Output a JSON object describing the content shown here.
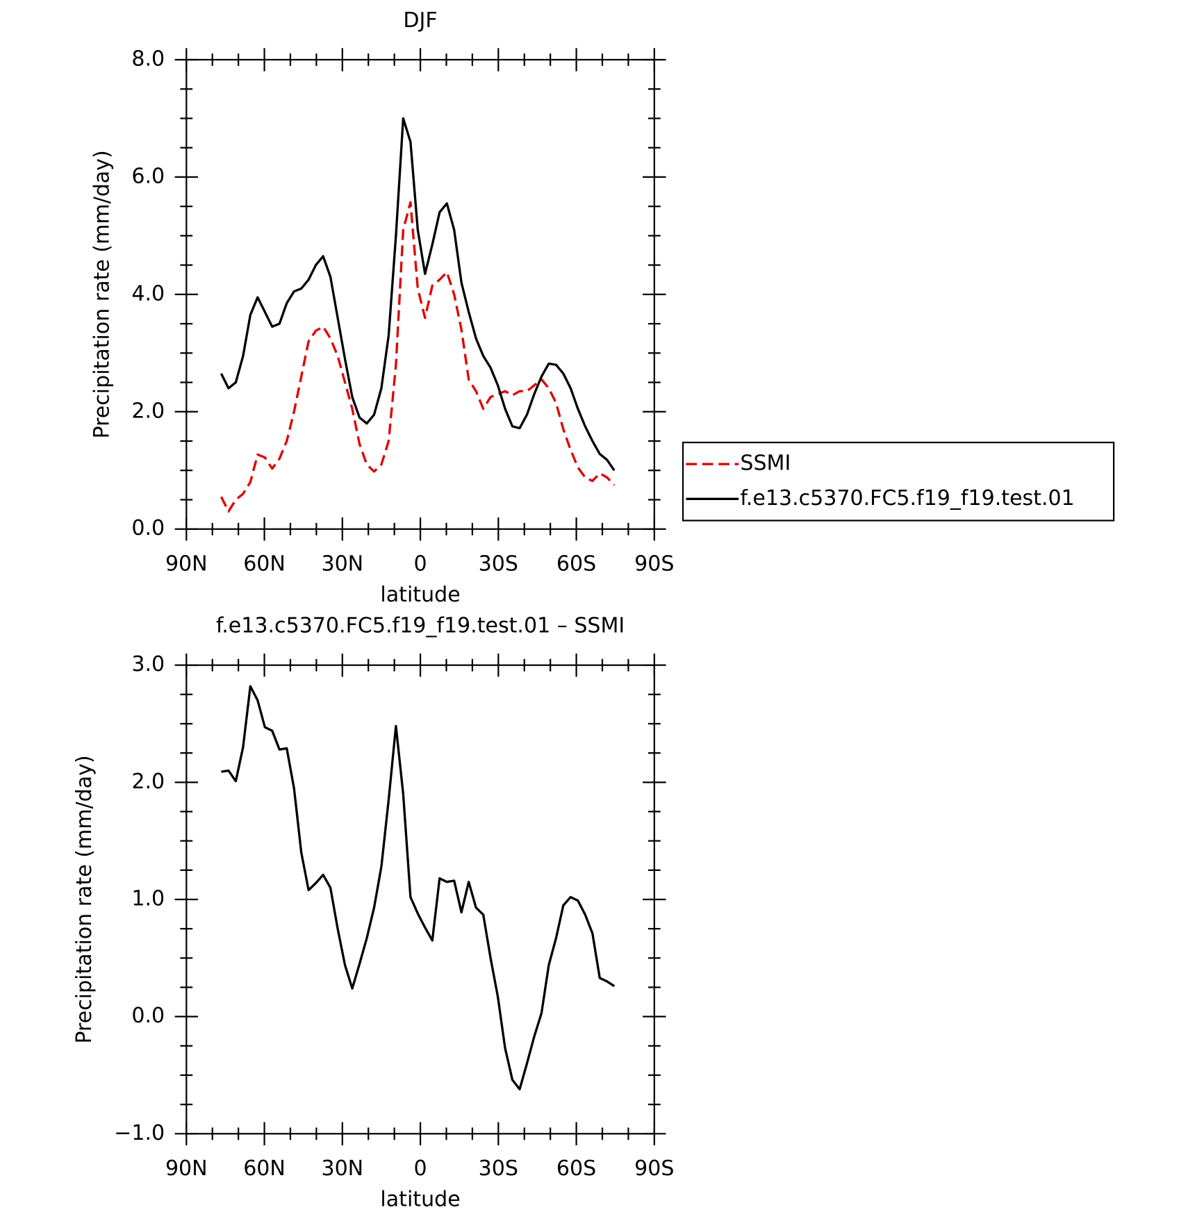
{
  "chart_data": [
    {
      "type": "line",
      "title": "DJF",
      "x_label": "latitude",
      "y_label": "Precipitation rate (mm/day)",
      "x": [
        76.6,
        73.8,
        71.0,
        68.2,
        65.4,
        62.6,
        59.8,
        57.0,
        54.2,
        51.4,
        48.6,
        45.8,
        43.0,
        40.2,
        37.4,
        34.6,
        31.8,
        29.0,
        26.2,
        23.4,
        20.6,
        17.8,
        15.0,
        12.2,
        9.4,
        6.6,
        3.8,
        1.0,
        -1.8,
        -4.6,
        -7.4,
        -10.2,
        -13.0,
        -15.8,
        -18.6,
        -21.4,
        -24.2,
        -27.0,
        -29.8,
        -32.6,
        -35.4,
        -38.2,
        -41.0,
        -43.8,
        -46.6,
        -49.4,
        -52.2,
        -55.0,
        -57.8,
        -60.6,
        -63.4,
        -66.2,
        -69.0,
        -71.8,
        -74.6
      ],
      "series": [
        {
          "name": "SSMI",
          "color": "#e00000",
          "line_style": "dashed",
          "values": [
            0.55,
            0.3,
            0.5,
            0.6,
            0.8,
            1.27,
            1.22,
            1.03,
            1.2,
            1.5,
            2.0,
            2.6,
            3.2,
            3.38,
            3.45,
            3.25,
            2.95,
            2.5,
            2.05,
            1.45,
            1.1,
            0.98,
            1.1,
            1.5,
            2.8,
            5.1,
            5.57,
            4.1,
            3.6,
            4.15,
            4.25,
            4.38,
            4.0,
            3.4,
            2.55,
            2.35,
            2.05,
            2.25,
            2.3,
            2.35,
            2.28,
            2.35,
            2.35,
            2.45,
            2.55,
            2.4,
            2.15,
            1.7,
            1.35,
            1.05,
            0.88,
            0.82,
            0.95,
            0.88,
            0.75
          ]
        },
        {
          "name": "f.e13.c5370.FC5.f19_f19.test.01",
          "color": "#000000",
          "line_style": "solid",
          "values": [
            2.65,
            2.4,
            2.5,
            2.95,
            3.65,
            3.95,
            3.7,
            3.45,
            3.5,
            3.85,
            4.05,
            4.1,
            4.25,
            4.5,
            4.65,
            4.3,
            3.6,
            2.9,
            2.25,
            1.9,
            1.8,
            1.95,
            2.4,
            3.3,
            5.0,
            7.0,
            6.6,
            5.1,
            4.35,
            4.85,
            5.4,
            5.55,
            5.1,
            4.2,
            3.7,
            3.25,
            2.95,
            2.75,
            2.45,
            2.05,
            1.75,
            1.72,
            1.95,
            2.3,
            2.6,
            2.82,
            2.8,
            2.65,
            2.4,
            2.05,
            1.75,
            1.5,
            1.28,
            1.18,
            1.0
          ]
        }
      ],
      "xlim": [
        90,
        -90
      ],
      "xticks": [
        {
          "value": 90,
          "label": "90N"
        },
        {
          "value": 60,
          "label": "60N"
        },
        {
          "value": 30,
          "label": "30N"
        },
        0,
        {
          "value": -30,
          "label": "30S"
        },
        {
          "value": -60,
          "label": "60S"
        },
        {
          "value": -90,
          "label": "90S"
        }
      ],
      "ylim": [
        0,
        8
      ],
      "yticks": [
        {
          "value": 0,
          "label": "0.0"
        },
        {
          "value": 2,
          "label": "2.0"
        },
        {
          "value": 4,
          "label": "4.0"
        },
        {
          "value": 6,
          "label": "6.0"
        },
        {
          "value": 8,
          "label": "8.0"
        }
      ],
      "legend": "outside-right"
    },
    {
      "type": "line",
      "title": "f.e13.c5370.FC5.f19_f19.test.01 – SSMI",
      "x_label": "latitude",
      "y_label": "Precipitation rate (mm/day)",
      "x": [
        76.6,
        73.8,
        71.0,
        68.2,
        65.4,
        62.6,
        59.8,
        57.0,
        54.2,
        51.4,
        48.6,
        45.8,
        43.0,
        40.2,
        37.4,
        34.6,
        31.8,
        29.0,
        26.2,
        23.4,
        20.6,
        17.8,
        15.0,
        12.2,
        9.4,
        6.6,
        3.8,
        1.0,
        -1.8,
        -4.6,
        -7.4,
        -10.2,
        -13.0,
        -15.8,
        -18.6,
        -21.4,
        -24.2,
        -27.0,
        -29.8,
        -32.6,
        -35.4,
        -38.2,
        -41.0,
        -43.8,
        -46.6,
        -49.4,
        -52.2,
        -55.0,
        -57.8,
        -60.6,
        -63.4,
        -66.2,
        -69.0,
        -71.8,
        -74.6
      ],
      "series": [
        {
          "color": "#000000",
          "line_style": "solid",
          "values": [
            2.09,
            2.1,
            2.01,
            2.3,
            2.82,
            2.7,
            2.47,
            2.44,
            2.28,
            2.29,
            1.95,
            1.4,
            1.08,
            1.14,
            1.21,
            1.1,
            0.75,
            0.44,
            0.24,
            0.45,
            0.67,
            0.93,
            1.28,
            1.85,
            2.48,
            1.9,
            1.02,
            0.88,
            0.76,
            0.65,
            1.18,
            1.15,
            1.16,
            0.89,
            1.15,
            0.93,
            0.87,
            0.5,
            0.17,
            -0.27,
            -0.54,
            -0.62,
            -0.4,
            -0.17,
            0.03,
            0.44,
            0.67,
            0.95,
            1.02,
            0.99,
            0.87,
            0.71,
            0.33,
            0.3,
            0.26
          ]
        }
      ],
      "xlim": [
        90,
        -90
      ],
      "xticks": [
        {
          "value": 90,
          "label": "90N"
        },
        {
          "value": 60,
          "label": "60N"
        },
        {
          "value": 30,
          "label": "30N"
        },
        0,
        {
          "value": -30,
          "label": "30S"
        },
        {
          "value": -60,
          "label": "60S"
        },
        {
          "value": -90,
          "label": "90S"
        }
      ],
      "ylim": [
        -1,
        3
      ],
      "yticks": [
        {
          "value": -1,
          "label": "−1.0"
        },
        {
          "value": 0,
          "label": "0.0"
        },
        {
          "value": 1,
          "label": "1.0"
        },
        {
          "value": 2,
          "label": "2.0"
        },
        {
          "value": 3,
          "label": "3.0"
        }
      ]
    }
  ]
}
